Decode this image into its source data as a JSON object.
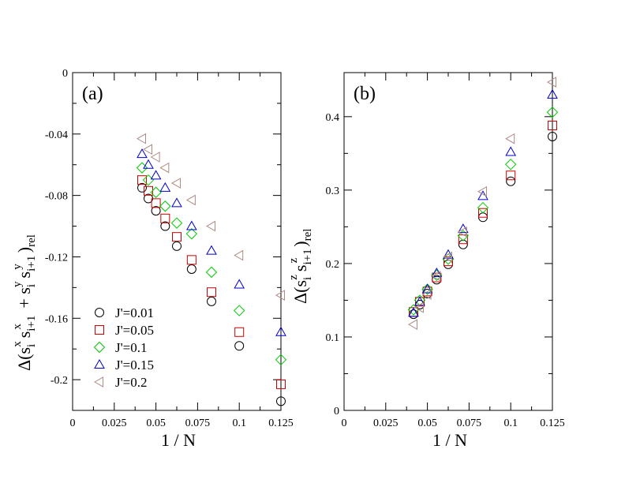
{
  "chart_data": [
    {
      "type": "scatter",
      "panel_label": "(a)",
      "xlabel": "1 / N",
      "ylabel_parts": {
        "main1": "Δ(s",
        "sub_i": "i",
        "sup_x": "x",
        "s": "s",
        "sub_i1": "i+1",
        "sup_x2": "x",
        "plus": " + s",
        "sub_i2": "i",
        "sup_y": "y",
        "s2": "s",
        "sub_i3": "i+1",
        "sup_y2": "y",
        "close": ")",
        "rel": "rel"
      },
      "xlim": [
        0,
        0.125
      ],
      "ylim": [
        -0.22,
        0
      ],
      "xticks": [
        "0",
        "0.025",
        "0.05",
        "0.075",
        "0.1",
        "0.125"
      ],
      "xtick_values": [
        0,
        0.025,
        0.05,
        0.075,
        0.1,
        0.125
      ],
      "yticks": [
        "0",
        "-0.04",
        "-0.08",
        "-0.12",
        "-0.16",
        "-0.2"
      ],
      "ytick_values": [
        0,
        -0.04,
        -0.08,
        -0.12,
        -0.16,
        -0.2
      ],
      "x": [
        0.041667,
        0.045455,
        0.05,
        0.055556,
        0.0625,
        0.071429,
        0.083333,
        0.1,
        0.125
      ],
      "series": [
        {
          "name": "J'=0.01",
          "marker": "circle",
          "color": "#000000",
          "values": [
            -0.075,
            -0.082,
            -0.09,
            -0.1,
            -0.113,
            -0.128,
            -0.149,
            -0.178,
            -0.214
          ]
        },
        {
          "name": "J'=0.05",
          "marker": "square",
          "color": "#cc0000",
          "values": [
            -0.07,
            -0.077,
            -0.085,
            -0.095,
            -0.107,
            -0.122,
            -0.143,
            -0.169,
            -0.203
          ]
        },
        {
          "name": "J'=0.1",
          "marker": "diamond",
          "color": "#00cc00",
          "values": [
            -0.062,
            -0.07,
            -0.078,
            -0.087,
            -0.098,
            -0.105,
            -0.13,
            -0.155,
            -0.187
          ]
        },
        {
          "name": "J'=0.15",
          "marker": "triangle-up",
          "color": "#0000cc",
          "values": [
            -0.053,
            -0.06,
            -0.067,
            -0.075,
            -0.085,
            -0.1,
            -0.116,
            -0.138,
            -0.169
          ]
        },
        {
          "name": "J'=0.2",
          "marker": "triangle-left",
          "color": "#b08a84",
          "values": [
            -0.043,
            -0.05,
            -0.055,
            -0.062,
            -0.072,
            -0.083,
            -0.1,
            -0.119,
            -0.145
          ]
        }
      ]
    },
    {
      "type": "scatter",
      "panel_label": "(b)",
      "xlabel": "1 / N",
      "ylabel_parts": {
        "main1": "Δ(s",
        "sub_i": "i",
        "sup_z": "z",
        "s": "s",
        "sub_i1": "i+1",
        "sup_z2": "z",
        "close": ")",
        "rel": "rel"
      },
      "xlim": [
        0,
        0.125
      ],
      "ylim": [
        0,
        0.46
      ],
      "xticks": [
        "0",
        "0.025",
        "0.05",
        "0.075",
        "0.1",
        "0.125"
      ],
      "xtick_values": [
        0,
        0.025,
        0.05,
        0.075,
        0.1,
        0.125
      ],
      "yticks": [
        "0",
        "0.1",
        "0.2",
        "0.3",
        "0.4"
      ],
      "ytick_values": [
        0,
        0.1,
        0.2,
        0.3,
        0.4
      ],
      "x": [
        0.041667,
        0.045455,
        0.05,
        0.055556,
        0.0625,
        0.071429,
        0.083333,
        0.1,
        0.125
      ],
      "series": [
        {
          "name": "J'=0.01",
          "marker": "circle",
          "color": "#000000",
          "values": [
            0.131,
            0.144,
            0.159,
            0.178,
            0.199,
            0.226,
            0.263,
            0.312,
            0.373
          ]
        },
        {
          "name": "J'=0.05",
          "marker": "square",
          "color": "#cc0000",
          "values": [
            0.134,
            0.148,
            0.162,
            0.181,
            0.203,
            0.233,
            0.269,
            0.32,
            0.388
          ]
        },
        {
          "name": "J'=0.1",
          "marker": "diamond",
          "color": "#00cc00",
          "values": [
            0.137,
            0.15,
            0.165,
            0.184,
            0.206,
            0.238,
            0.276,
            0.335,
            0.406
          ]
        },
        {
          "name": "J'=0.15",
          "marker": "triangle-up",
          "color": "#0000cc",
          "values": [
            0.133,
            0.148,
            0.165,
            0.187,
            0.212,
            0.247,
            0.292,
            0.352,
            0.43
          ]
        },
        {
          "name": "J'=0.2",
          "marker": "triangle-left",
          "color": "#b08a84",
          "values": [
            0.117,
            0.14,
            0.158,
            0.183,
            0.209,
            0.243,
            0.298,
            0.37,
            0.447
          ]
        }
      ]
    }
  ]
}
